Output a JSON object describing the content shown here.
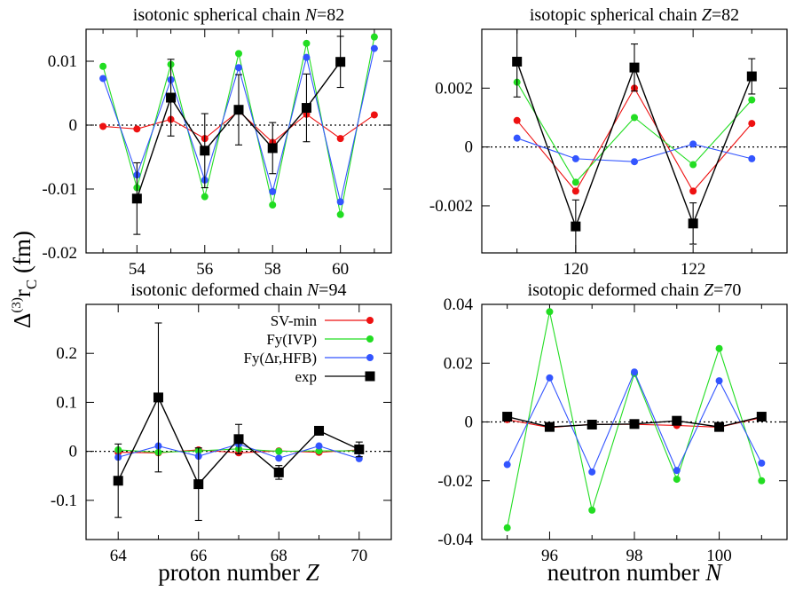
{
  "figure": {
    "y_axis_label": "Δ(3)rC (fm)",
    "x_axis_labels": [
      "proton number Z",
      "neutron number N"
    ]
  },
  "legend": {
    "entries": [
      {
        "name": "SV-min",
        "color": "#ee1111"
      },
      {
        "name": "Fy(IVP)",
        "color": "#22dd22"
      },
      {
        "name": "Fy(Δr,HFB)",
        "color": "#3355ff"
      },
      {
        "name": "exp",
        "color": "#000000"
      }
    ]
  },
  "chart_data": [
    {
      "type": "line",
      "title": "isotonic spherical chain N=82",
      "xlabel": "proton number Z",
      "ylabel": "Δ(3)rC (fm)",
      "xlim": [
        52.5,
        61.5
      ],
      "ylim": [
        -0.02,
        0.015
      ],
      "xticks": [
        54,
        56,
        58,
        60
      ],
      "yticks": [
        -0.02,
        -0.01,
        0,
        0.01
      ],
      "ytick_labels": [
        "-0.02",
        "-0.01",
        "0",
        "0.01"
      ],
      "zero_line": true,
      "series": [
        {
          "name": "SV-min",
          "x": [
            53,
            54,
            55,
            56,
            57,
            58,
            59,
            60,
            61
          ],
          "y": [
            -0.0002,
            -0.0006,
            0.0009,
            -0.0021,
            0.0022,
            -0.0027,
            0.0017,
            -0.0021,
            0.0016
          ]
        },
        {
          "name": "Fy(IVP)",
          "x": [
            53,
            54,
            55,
            56,
            57,
            58,
            59,
            60,
            61
          ],
          "y": [
            0.0092,
            -0.0098,
            0.0095,
            -0.0112,
            0.0112,
            -0.0125,
            0.0128,
            -0.014,
            0.0138
          ]
        },
        {
          "name": "Fy(Δr,HFB)",
          "x": [
            53,
            54,
            55,
            56,
            57,
            58,
            59,
            60,
            61
          ],
          "y": [
            0.0073,
            -0.0078,
            0.0071,
            -0.0086,
            0.009,
            -0.0104,
            0.0106,
            -0.012,
            0.012
          ]
        },
        {
          "name": "exp",
          "x": [
            54,
            55,
            56,
            57,
            58,
            59,
            60
          ],
          "y": [
            -0.0115,
            0.0043,
            -0.004,
            0.0024,
            -0.0036,
            0.0027,
            0.0099
          ],
          "err": [
            0.0056,
            0.006,
            0.0058,
            0.0055,
            0.004,
            0.0053,
            0.004
          ]
        }
      ]
    },
    {
      "type": "line",
      "title": "isotopic spherical chain Z=82",
      "xlabel": "neutron number N",
      "ylabel": "Δ(3)rC (fm)",
      "xlim": [
        118.4,
        123.6
      ],
      "ylim": [
        -0.0036,
        0.004
      ],
      "xticks": [
        120,
        122
      ],
      "yticks": [
        -0.002,
        0,
        0.002
      ],
      "ytick_labels": [
        "-0.002",
        "0",
        "0.002"
      ],
      "zero_line": true,
      "series": [
        {
          "name": "SV-min",
          "x": [
            119,
            120,
            121,
            122,
            123
          ],
          "y": [
            0.0009,
            -0.0015,
            0.002,
            -0.0015,
            0.0008
          ]
        },
        {
          "name": "Fy(IVP)",
          "x": [
            119,
            120,
            121,
            122,
            123
          ],
          "y": [
            0.0022,
            -0.0012,
            0.001,
            -0.0006,
            0.0016
          ]
        },
        {
          "name": "Fy(Δr,HFB)",
          "x": [
            119,
            120,
            121,
            122,
            123
          ],
          "y": [
            0.0003,
            -0.0004,
            -0.0005,
            0.0001,
            -0.0004
          ]
        },
        {
          "name": "exp",
          "x": [
            119,
            120,
            121,
            122,
            123
          ],
          "y": [
            0.0029,
            -0.0027,
            0.0027,
            -0.0026,
            0.0024
          ],
          "err": [
            0.0012,
            0.0009,
            0.0008,
            0.0007,
            0.0006
          ]
        }
      ]
    },
    {
      "type": "line",
      "title": "isotonic deformed chain N=94",
      "xlabel": "proton number Z",
      "ylabel": "Δ(3)rC (fm)",
      "xlim": [
        63.2,
        70.8
      ],
      "ylim": [
        -0.18,
        0.3
      ],
      "xticks": [
        64,
        66,
        68,
        70
      ],
      "yticks": [
        -0.1,
        0,
        0.1,
        0.2
      ],
      "ytick_labels": [
        "-0.1",
        "0",
        "0.1",
        "0.2"
      ],
      "zero_line": true,
      "series": [
        {
          "name": "SV-min",
          "x": [
            64,
            65,
            66,
            67,
            68,
            69,
            70
          ],
          "y": [
            -0.002,
            -0.003,
            0.003,
            -0.003,
            0.001,
            -0.002,
            0.003
          ]
        },
        {
          "name": "Fy(IVP)",
          "x": [
            64,
            65,
            66,
            67,
            68,
            69,
            70
          ],
          "y": [
            0.003,
            -0.002,
            0.001,
            0.005,
            0.0,
            0.001,
            0.001
          ]
        },
        {
          "name": "Fy(Δr,HFB)",
          "x": [
            64,
            65,
            66,
            67,
            68,
            69,
            70
          ],
          "y": [
            -0.012,
            0.011,
            -0.01,
            0.015,
            -0.014,
            0.011,
            -0.015
          ]
        },
        {
          "name": "exp",
          "x": [
            64,
            65,
            66,
            67,
            68,
            69,
            70
          ],
          "y": [
            -0.06,
            0.11,
            -0.067,
            0.025,
            -0.043,
            0.042,
            0.004
          ],
          "err": [
            0.075,
            0.152,
            0.074,
            0.03,
            0.014,
            0.004,
            0.015
          ]
        }
      ]
    },
    {
      "type": "line",
      "title": "isotopic deformed chain Z=70",
      "xlabel": "neutron number N",
      "ylabel": "Δ(3)rC (fm)",
      "xlim": [
        94.4,
        101.6
      ],
      "ylim": [
        -0.04,
        0.04
      ],
      "xticks": [
        96,
        98,
        100
      ],
      "yticks": [
        -0.04,
        -0.02,
        0,
        0.02,
        0.04
      ],
      "ytick_labels": [
        "-0.04",
        "-0.02",
        "0",
        "0.02",
        "0.04"
      ],
      "zero_line": true,
      "series": [
        {
          "name": "SV-min",
          "x": [
            95,
            96,
            97,
            98,
            99,
            100,
            101
          ],
          "y": [
            0.0008,
            -0.0019,
            -0.0008,
            -0.0008,
            -0.0012,
            -0.0018,
            0.0015
          ]
        },
        {
          "name": "Fy(IVP)",
          "x": [
            95,
            96,
            97,
            98,
            99,
            100,
            101
          ],
          "y": [
            -0.036,
            0.0375,
            -0.03,
            0.0165,
            -0.0195,
            0.025,
            -0.02
          ]
        },
        {
          "name": "Fy(Δr,HFB)",
          "x": [
            95,
            96,
            97,
            98,
            99,
            100,
            101
          ],
          "y": [
            -0.0145,
            0.015,
            -0.017,
            0.017,
            -0.0165,
            0.014,
            -0.014
          ]
        },
        {
          "name": "exp",
          "x": [
            95,
            96,
            97,
            98,
            99,
            100,
            101
          ],
          "y": [
            0.0018,
            -0.0017,
            -0.0009,
            -0.0007,
            0.0004,
            -0.0017,
            0.0018
          ],
          "err": [
            0.0003,
            0.0003,
            0.0003,
            0.0003,
            0.0003,
            0.0003,
            0.0003
          ]
        }
      ]
    }
  ]
}
